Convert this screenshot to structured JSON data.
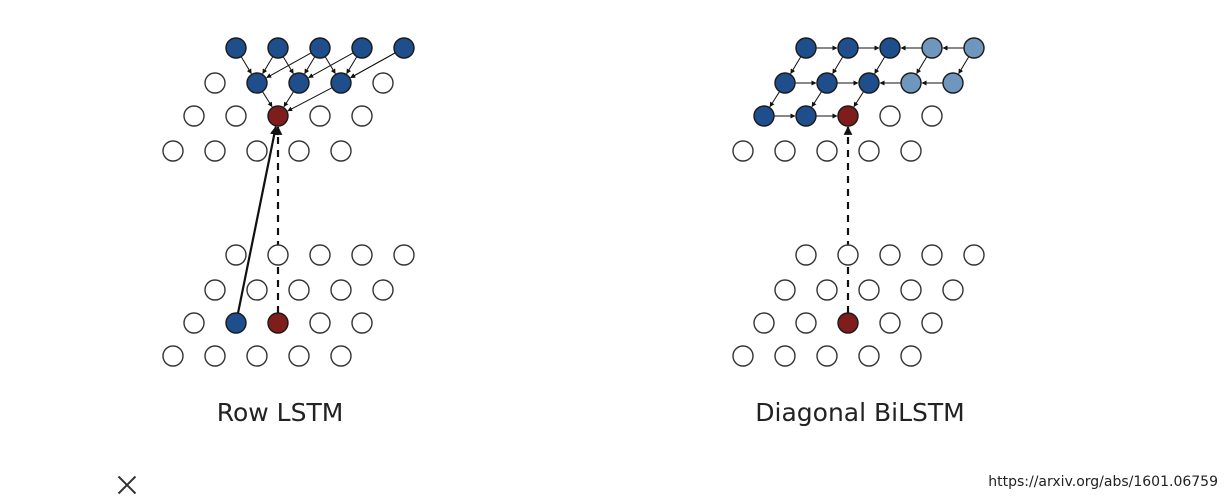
{
  "diagrams": [
    {
      "label": "Row LSTM"
    },
    {
      "label": "Diagonal BiLSTM"
    }
  ],
  "source": "https://arxiv.org/abs/1601.06759",
  "close_icon": "close-icon",
  "colors": {
    "context": "#1f4e8c",
    "context_light": "#6f96bd",
    "current": "#7f1d1d",
    "empty_stroke": "#333333"
  }
}
